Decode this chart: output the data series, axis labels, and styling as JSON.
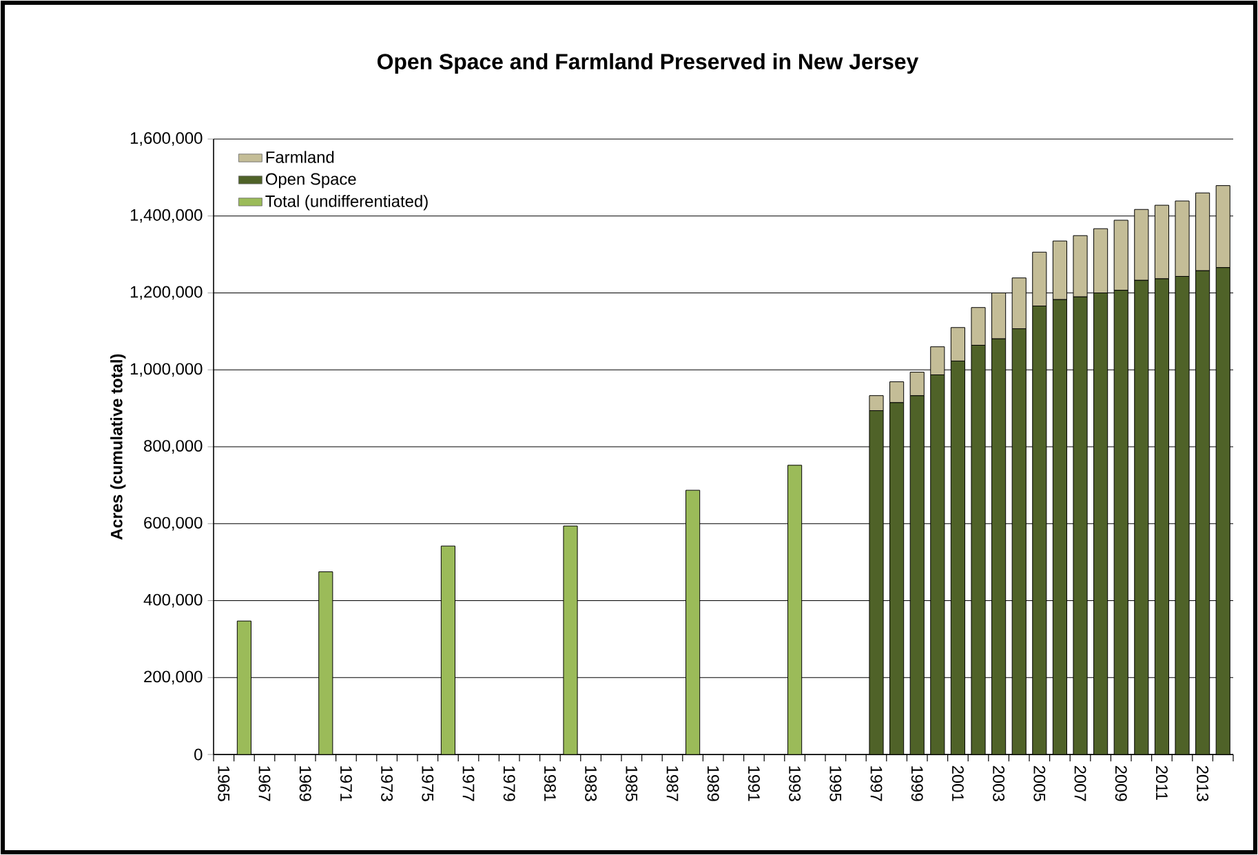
{
  "chart_data": {
    "type": "bar",
    "stacked": true,
    "title": "Open Space and Farmland Preserved  in New Jersey",
    "ylabel": "Acres (cumulative total)",
    "categories": [
      "1965",
      null,
      "1967",
      null,
      "1969",
      null,
      "1971",
      null,
      "1973",
      null,
      "1975",
      null,
      "1977",
      null,
      "1979",
      null,
      "1981",
      null,
      "1983",
      null,
      "1985",
      null,
      "1987",
      null,
      "1989",
      null,
      "1991",
      null,
      "1993",
      null,
      "1995",
      null,
      "1997",
      null,
      "1999",
      null,
      "2001",
      null,
      "2003",
      null,
      "2005",
      null,
      "2007",
      null,
      "2009",
      null,
      "2011",
      null,
      "2013",
      null
    ],
    "series": [
      {
        "name": "Total (undifferentiated)",
        "color": "#9bbb59",
        "values": [
          null,
          347000,
          null,
          null,
          null,
          475000,
          null,
          null,
          null,
          null,
          null,
          542000,
          null,
          null,
          null,
          null,
          null,
          594000,
          null,
          null,
          null,
          null,
          null,
          687000,
          null,
          null,
          null,
          null,
          752000,
          null,
          null,
          null,
          null,
          null,
          null,
          null,
          null,
          null,
          null,
          null,
          null,
          null,
          null,
          null,
          null,
          null,
          null,
          null,
          null,
          null
        ]
      },
      {
        "name": "Open Space",
        "color": "#4f6228",
        "values": [
          null,
          null,
          null,
          null,
          null,
          null,
          null,
          null,
          null,
          null,
          null,
          null,
          null,
          null,
          null,
          null,
          null,
          null,
          null,
          null,
          null,
          null,
          null,
          null,
          null,
          null,
          null,
          null,
          null,
          null,
          null,
          null,
          894000,
          915000,
          933000,
          987000,
          1023000,
          1064000,
          1081000,
          1107000,
          1166000,
          1183000,
          1190000,
          1200000,
          1207000,
          1233000,
          1237000,
          1243000,
          1258000,
          1266000
        ]
      },
      {
        "name": "Farmland",
        "color": "#c4bd97",
        "values": [
          null,
          null,
          null,
          null,
          null,
          null,
          null,
          null,
          null,
          null,
          null,
          null,
          null,
          null,
          null,
          null,
          null,
          null,
          null,
          null,
          null,
          null,
          null,
          null,
          null,
          null,
          null,
          null,
          null,
          null,
          null,
          null,
          39000,
          54000,
          61000,
          73000,
          87000,
          98000,
          119000,
          132000,
          140000,
          152000,
          159000,
          167000,
          182000,
          184000,
          191000,
          196000,
          202000,
          213000
        ]
      }
    ],
    "ylim": [
      0,
      1600000
    ],
    "yticks": [
      0,
      {
        "value": 200000,
        "label": "200,000"
      },
      {
        "value": 400000,
        "label": "400,000"
      },
      {
        "value": 600000,
        "label": "600,000"
      },
      {
        "value": 800000,
        "label": "800,000"
      },
      {
        "value": 1000000,
        "label": "1,000,000"
      },
      {
        "value": 1200000,
        "label": "1,200,000"
      },
      {
        "value": 1400000,
        "label": "1,400,000"
      },
      {
        "value": 1600000,
        "label": "1,600,000"
      }
    ],
    "grid": "y",
    "legend": "top left"
  }
}
